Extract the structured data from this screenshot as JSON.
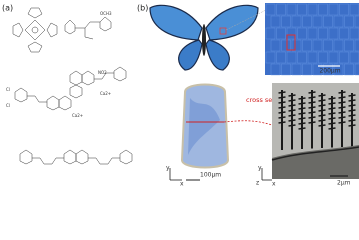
{
  "panels": {
    "a": {
      "label": "(a)",
      "chem_labels": [
        "NO2",
        "Ca2+",
        "Ca2+",
        "OCH3",
        "Cl",
        "Cl"
      ]
    },
    "b": {
      "label": "(b)",
      "scale_bars": [
        "200μm",
        "100μm",
        "2μm"
      ],
      "annotation": "cross section",
      "axes_left": [
        "y",
        "x"
      ],
      "axes_right": [
        "y",
        "z",
        "x"
      ]
    }
  }
}
